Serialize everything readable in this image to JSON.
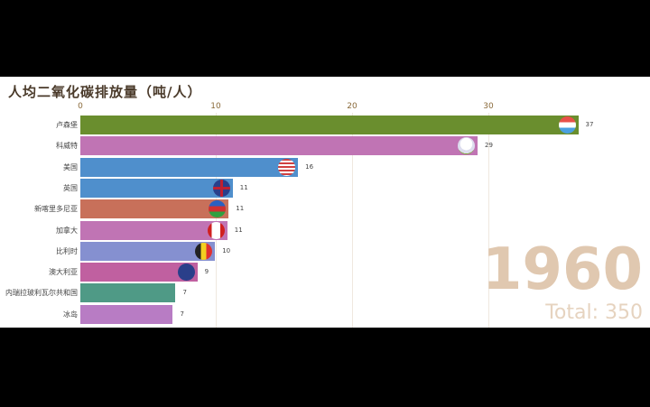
{
  "chart_data": {
    "type": "bar",
    "orientation": "horizontal",
    "title": "人均二氧化碳排放量（吨/人）",
    "xlabel": "",
    "ylabel": "",
    "xlim": [
      0,
      37
    ],
    "x_ticks": [
      0,
      10,
      20,
      30
    ],
    "grid": true,
    "year": "1960",
    "total_label": "Total: 350",
    "categories": [
      "卢森堡",
      "科威特",
      "美国",
      "英国",
      "新喀里多尼亚",
      "加拿大",
      "比利时",
      "澳大利亚",
      "内瑞拉玻利瓦尔共和国",
      "冰岛"
    ],
    "values": [
      36.6,
      29.2,
      16.0,
      11.2,
      10.9,
      10.8,
      9.9,
      8.6,
      7.0,
      6.8
    ],
    "value_labels": [
      "37",
      "29",
      "16",
      "11",
      "11",
      "11",
      "10",
      "9",
      "7",
      "7"
    ],
    "colors": [
      "#6a8e2e",
      "#c074b4",
      "#4f8fcc",
      "#4f8fcc",
      "#c8705a",
      "#c074b4",
      "#8590d0",
      "#c060a0",
      "#4f9a86",
      "#b87cc4"
    ],
    "flags": [
      "luxembourg-flag",
      "kuwait-flag",
      "usa-flag",
      "uk-flag",
      "new-caledonia-flag",
      "canada-flag",
      "belgium-flag",
      "australia-flag",
      "",
      ""
    ]
  }
}
